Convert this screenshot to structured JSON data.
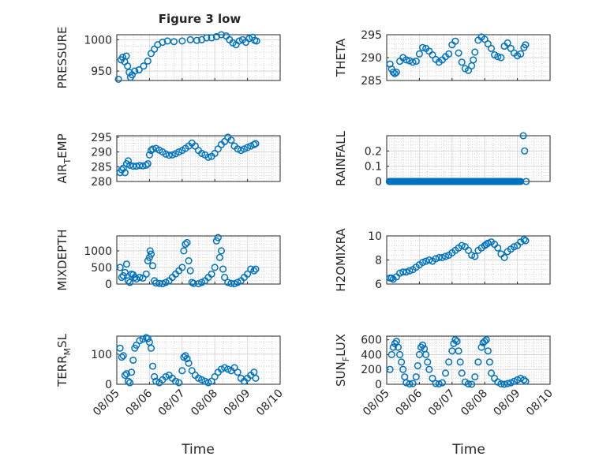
{
  "figure": {
    "title": "Figure 3 low",
    "xlabel": "Time",
    "marker_color": "#0072BD"
  },
  "chart_data": [
    {
      "type": "scatter",
      "panel": "top-left",
      "ylabel_parts": [
        "PRESSURE"
      ],
      "ylim": [
        935,
        1008
      ],
      "yticks": [
        {
          "v": 950,
          "t": "950"
        },
        {
          "v": 1000,
          "t": "1000"
        }
      ],
      "xlim": [
        0,
        5
      ],
      "xticks": [
        "08/05",
        "08/06",
        "08/07",
        "08/08",
        "08/09",
        "08/10"
      ],
      "show_xticklabels": false,
      "grid": true,
      "x": [
        0.05,
        0.13,
        0.18,
        0.24,
        0.29,
        0.33,
        0.38,
        0.42,
        0.47,
        0.55,
        0.68,
        0.82,
        0.95,
        1.05,
        1.15,
        1.25,
        1.4,
        1.55,
        1.75,
        2.0,
        2.25,
        2.45,
        2.6,
        2.75,
        2.9,
        3.05,
        3.2,
        3.35,
        3.45,
        3.55,
        3.65,
        3.75,
        3.85,
        3.95,
        4.05,
        4.15,
        4.22,
        4.28
      ],
      "y": [
        937,
        968,
        972,
        965,
        974,
        958,
        948,
        940,
        944,
        950,
        952,
        958,
        966,
        978,
        985,
        992,
        996,
        998,
        997,
        998,
        1000,
        999,
        1000,
        1003,
        1003,
        1005,
        1008,
        1006,
        1000,
        995,
        992,
        998,
        1000,
        996,
        1002,
        1004,
        999,
        998
      ]
    },
    {
      "type": "scatter",
      "panel": "top-right",
      "ylabel_parts": [
        "THETA"
      ],
      "ylim": [
        285,
        295
      ],
      "yticks": [
        {
          "v": 285,
          "t": "285"
        },
        {
          "v": 290,
          "t": "290"
        },
        {
          "v": 295,
          "t": "295"
        }
      ],
      "xlim": [
        0,
        5
      ],
      "xticks": [
        "08/05",
        "08/06",
        "08/07",
        "08/08",
        "08/09",
        "08/10"
      ],
      "show_xticklabels": false,
      "grid": true,
      "x": [
        0.1,
        0.15,
        0.2,
        0.25,
        0.3,
        0.4,
        0.5,
        0.6,
        0.7,
        0.8,
        0.9,
        1.0,
        1.1,
        1.2,
        1.3,
        1.4,
        1.5,
        1.6,
        1.7,
        1.8,
        1.9,
        2.0,
        2.1,
        2.2,
        2.3,
        2.4,
        2.5,
        2.6,
        2.65,
        2.7,
        2.8,
        2.9,
        3.0,
        3.1,
        3.2,
        3.3,
        3.4,
        3.5,
        3.6,
        3.7,
        3.8,
        3.9,
        4.0,
        4.1,
        4.2,
        4.25
      ],
      "y": [
        288.6,
        287.5,
        286.8,
        286.5,
        286.8,
        289.2,
        290.0,
        289.5,
        289.3,
        289.0,
        289.2,
        290.8,
        292.2,
        292.0,
        291.4,
        290.6,
        289.6,
        289.0,
        289.5,
        290.2,
        290.8,
        292.8,
        293.6,
        291.0,
        289.0,
        287.6,
        287.2,
        288.2,
        289.5,
        291.2,
        293.8,
        294.5,
        294.0,
        293.0,
        292.0,
        290.6,
        290.2,
        290.0,
        292.5,
        293.2,
        292.0,
        291.0,
        290.4,
        290.8,
        292.2,
        292.8
      ]
    },
    {
      "type": "scatter",
      "panel": "row2-left",
      "ylabel_parts": [
        "AIR",
        "T",
        "EMP"
      ],
      "ylim": [
        280,
        295.5
      ],
      "yticks": [
        {
          "v": 280,
          "t": "280"
        },
        {
          "v": 285,
          "t": "285"
        },
        {
          "v": 290,
          "t": "290"
        },
        {
          "v": 295,
          "t": "295"
        }
      ],
      "xlim": [
        0,
        5
      ],
      "xticks": [
        "08/05",
        "08/06",
        "08/07",
        "08/08",
        "08/09",
        "08/10"
      ],
      "show_xticklabels": false,
      "grid": true,
      "x": [
        0.1,
        0.15,
        0.2,
        0.25,
        0.3,
        0.35,
        0.4,
        0.5,
        0.6,
        0.7,
        0.8,
        0.9,
        0.95,
        1.0,
        1.05,
        1.1,
        1.2,
        1.3,
        1.4,
        1.5,
        1.6,
        1.7,
        1.8,
        1.9,
        2.0,
        2.1,
        2.2,
        2.3,
        2.4,
        2.5,
        2.6,
        2.7,
        2.8,
        2.9,
        3.0,
        3.1,
        3.2,
        3.3,
        3.4,
        3.5,
        3.6,
        3.7,
        3.8,
        3.9,
        4.0,
        4.1,
        4.2,
        4.25
      ],
      "y": [
        283,
        284,
        284.5,
        283,
        286,
        287,
        285.5,
        285.2,
        285.2,
        285.4,
        285.3,
        285.5,
        286.0,
        289,
        290.5,
        291,
        291.2,
        290.6,
        290.0,
        289.3,
        288.9,
        289.0,
        289.4,
        290.0,
        290.5,
        291.2,
        292.0,
        293.0,
        292.0,
        290.5,
        289.5,
        289.0,
        288.2,
        288.5,
        289.5,
        291.0,
        292.5,
        293.5,
        295.0,
        294.0,
        292.0,
        291.0,
        290.5,
        291.0,
        291.5,
        292.0,
        292.5,
        292.8
      ]
    },
    {
      "type": "scatter",
      "panel": "row2-right",
      "ylabel_parts": [
        "RAINFALL"
      ],
      "ylim": [
        0,
        0.3
      ],
      "yticks": [
        {
          "v": 0,
          "t": "0"
        },
        {
          "v": 0.1,
          "t": "0.1"
        },
        {
          "v": 0.2,
          "t": "0.2"
        }
      ],
      "xlim": [
        0,
        5
      ],
      "xticks": [
        "08/05",
        "08/06",
        "08/07",
        "08/08",
        "08/09",
        "08/10"
      ],
      "show_xticklabels": false,
      "grid": true,
      "x_range_zero": [
        0.08,
        4.12
      ],
      "x": [
        4.18,
        4.22,
        4.27
      ],
      "y": [
        0.3,
        0.2,
        0.0
      ]
    },
    {
      "type": "scatter",
      "panel": "row3-left",
      "ylabel_parts": [
        "MIXDEPTH"
      ],
      "ylim": [
        0,
        1450
      ],
      "yticks": [
        {
          "v": 0,
          "t": "0"
        },
        {
          "v": 500,
          "t": "500"
        },
        {
          "v": 1000,
          "t": "1000"
        }
      ],
      "xlim": [
        0,
        5
      ],
      "xticks": [
        "08/05",
        "08/06",
        "08/07",
        "08/08",
        "08/09",
        "08/10"
      ],
      "show_xticklabels": false,
      "grid": true,
      "x": [
        0.1,
        0.15,
        0.2,
        0.25,
        0.3,
        0.35,
        0.4,
        0.45,
        0.5,
        0.55,
        0.6,
        0.7,
        0.8,
        0.9,
        0.95,
        1.0,
        1.02,
        1.05,
        1.1,
        1.15,
        1.2,
        1.3,
        1.4,
        1.5,
        1.6,
        1.7,
        1.8,
        1.9,
        2.0,
        2.05,
        2.1,
        2.15,
        2.2,
        2.25,
        2.3,
        2.35,
        2.5,
        2.6,
        2.7,
        2.8,
        2.9,
        3.0,
        3.05,
        3.1,
        3.15,
        3.2,
        3.25,
        3.3,
        3.4,
        3.5,
        3.6,
        3.7,
        3.8,
        3.9,
        4.0,
        4.1,
        4.2,
        4.25
      ],
      "y": [
        500,
        200,
        250,
        350,
        600,
        100,
        50,
        300,
        280,
        200,
        150,
        200,
        180,
        300,
        700,
        800,
        1000,
        900,
        550,
        100,
        30,
        20,
        10,
        50,
        100,
        200,
        300,
        400,
        500,
        1000,
        1200,
        1250,
        700,
        400,
        50,
        20,
        10,
        50,
        100,
        200,
        300,
        500,
        1300,
        1400,
        800,
        1000,
        450,
        200,
        50,
        20,
        10,
        50,
        100,
        200,
        300,
        450,
        400,
        450
      ]
    },
    {
      "type": "scatter",
      "panel": "row3-right",
      "ylabel_parts": [
        "H2OMIXRA"
      ],
      "ylim": [
        6,
        10
      ],
      "yticks": [
        {
          "v": 6,
          "t": "6"
        },
        {
          "v": 8,
          "t": "8"
        },
        {
          "v": 10,
          "t": "10"
        }
      ],
      "xlim": [
        0,
        5
      ],
      "xticks": [
        "08/05",
        "08/06",
        "08/07",
        "08/08",
        "08/09",
        "08/10"
      ],
      "show_xticklabels": false,
      "grid": true,
      "x": [
        0.1,
        0.15,
        0.2,
        0.3,
        0.4,
        0.5,
        0.6,
        0.7,
        0.8,
        0.9,
        1.0,
        1.1,
        1.2,
        1.3,
        1.4,
        1.5,
        1.6,
        1.7,
        1.8,
        1.9,
        2.0,
        2.1,
        2.2,
        2.3,
        2.4,
        2.5,
        2.6,
        2.7,
        2.8,
        2.9,
        3.0,
        3.05,
        3.1,
        3.2,
        3.3,
        3.4,
        3.5,
        3.6,
        3.7,
        3.8,
        3.9,
        4.0,
        4.1,
        4.2,
        4.25
      ],
      "y": [
        6.5,
        6.5,
        6.4,
        6.6,
        6.9,
        7.0,
        7.0,
        7.1,
        7.2,
        7.4,
        7.6,
        7.8,
        7.9,
        8.0,
        7.9,
        8.1,
        8.2,
        8.2,
        8.3,
        8.4,
        8.6,
        8.8,
        9.0,
        9.2,
        9.1,
        8.8,
        8.4,
        8.3,
        8.8,
        9.0,
        9.2,
        9.3,
        9.4,
        9.5,
        9.3,
        9.0,
        8.5,
        8.2,
        8.7,
        8.9,
        9.1,
        9.2,
        9.5,
        9.7,
        9.6
      ]
    },
    {
      "type": "scatter",
      "panel": "bottom-left",
      "ylabel_parts": [
        "TERR",
        "M",
        "SL"
      ],
      "ylim": [
        0,
        160
      ],
      "yticks": [
        {
          "v": 0,
          "t": "0"
        },
        {
          "v": 100,
          "t": "100"
        }
      ],
      "xlim": [
        0,
        5
      ],
      "xticks": [
        "08/05",
        "08/06",
        "08/07",
        "08/08",
        "08/09",
        "08/10"
      ],
      "show_xticklabels": true,
      "grid": true,
      "x": [
        0.1,
        0.15,
        0.2,
        0.25,
        0.3,
        0.35,
        0.4,
        0.45,
        0.5,
        0.55,
        0.6,
        0.7,
        0.8,
        0.9,
        0.95,
        1.0,
        1.05,
        1.1,
        1.15,
        1.2,
        1.3,
        1.4,
        1.5,
        1.6,
        1.7,
        1.8,
        1.9,
        2.0,
        2.05,
        2.1,
        2.15,
        2.2,
        2.3,
        2.4,
        2.5,
        2.6,
        2.7,
        2.8,
        2.9,
        3.0,
        3.1,
        3.2,
        3.3,
        3.4,
        3.5,
        3.6,
        3.7,
        3.8,
        3.9,
        4.0,
        4.1,
        4.2,
        4.25
      ],
      "y": [
        120,
        90,
        95,
        30,
        35,
        10,
        5,
        40,
        80,
        120,
        130,
        145,
        150,
        155,
        152,
        140,
        120,
        60,
        25,
        10,
        5,
        15,
        25,
        30,
        20,
        10,
        5,
        45,
        90,
        95,
        85,
        70,
        45,
        30,
        20,
        15,
        10,
        5,
        10,
        25,
        40,
        50,
        55,
        50,
        45,
        55,
        40,
        20,
        10,
        20,
        30,
        40,
        20
      ]
    },
    {
      "type": "scatter",
      "panel": "bottom-right",
      "ylabel_parts": [
        "SUN",
        "F",
        "LUX"
      ],
      "ylim": [
        0,
        650
      ],
      "yticks": [
        {
          "v": 0,
          "t": "0"
        },
        {
          "v": 200,
          "t": "200"
        },
        {
          "v": 400,
          "t": "400"
        },
        {
          "v": 600,
          "t": "600"
        }
      ],
      "xlim": [
        0,
        5
      ],
      "xticks": [
        "08/05",
        "08/06",
        "08/07",
        "08/08",
        "08/09",
        "08/10"
      ],
      "show_xticklabels": true,
      "grid": true,
      "x": [
        0.1,
        0.15,
        0.2,
        0.25,
        0.3,
        0.35,
        0.4,
        0.45,
        0.5,
        0.55,
        0.6,
        0.7,
        0.8,
        0.9,
        0.95,
        1.0,
        1.05,
        1.1,
        1.15,
        1.2,
        1.25,
        1.3,
        1.4,
        1.5,
        1.6,
        1.7,
        1.8,
        1.9,
        2.0,
        2.05,
        2.1,
        2.15,
        2.2,
        2.25,
        2.3,
        2.4,
        2.5,
        2.6,
        2.7,
        2.8,
        2.9,
        2.95,
        3.0,
        3.05,
        3.1,
        3.15,
        3.2,
        3.3,
        3.4,
        3.5,
        3.6,
        3.7,
        3.8,
        3.9,
        4.0,
        4.1,
        4.2,
        4.25
      ],
      "y": [
        200,
        400,
        500,
        550,
        580,
        500,
        400,
        300,
        200,
        100,
        20,
        5,
        10,
        100,
        250,
        400,
        500,
        530,
        480,
        400,
        300,
        200,
        80,
        10,
        5,
        20,
        150,
        300,
        450,
        550,
        600,
        580,
        450,
        300,
        150,
        30,
        5,
        0,
        100,
        300,
        500,
        560,
        580,
        600,
        450,
        300,
        150,
        80,
        30,
        5,
        0,
        10,
        20,
        40,
        60,
        80,
        60,
        40
      ]
    }
  ]
}
